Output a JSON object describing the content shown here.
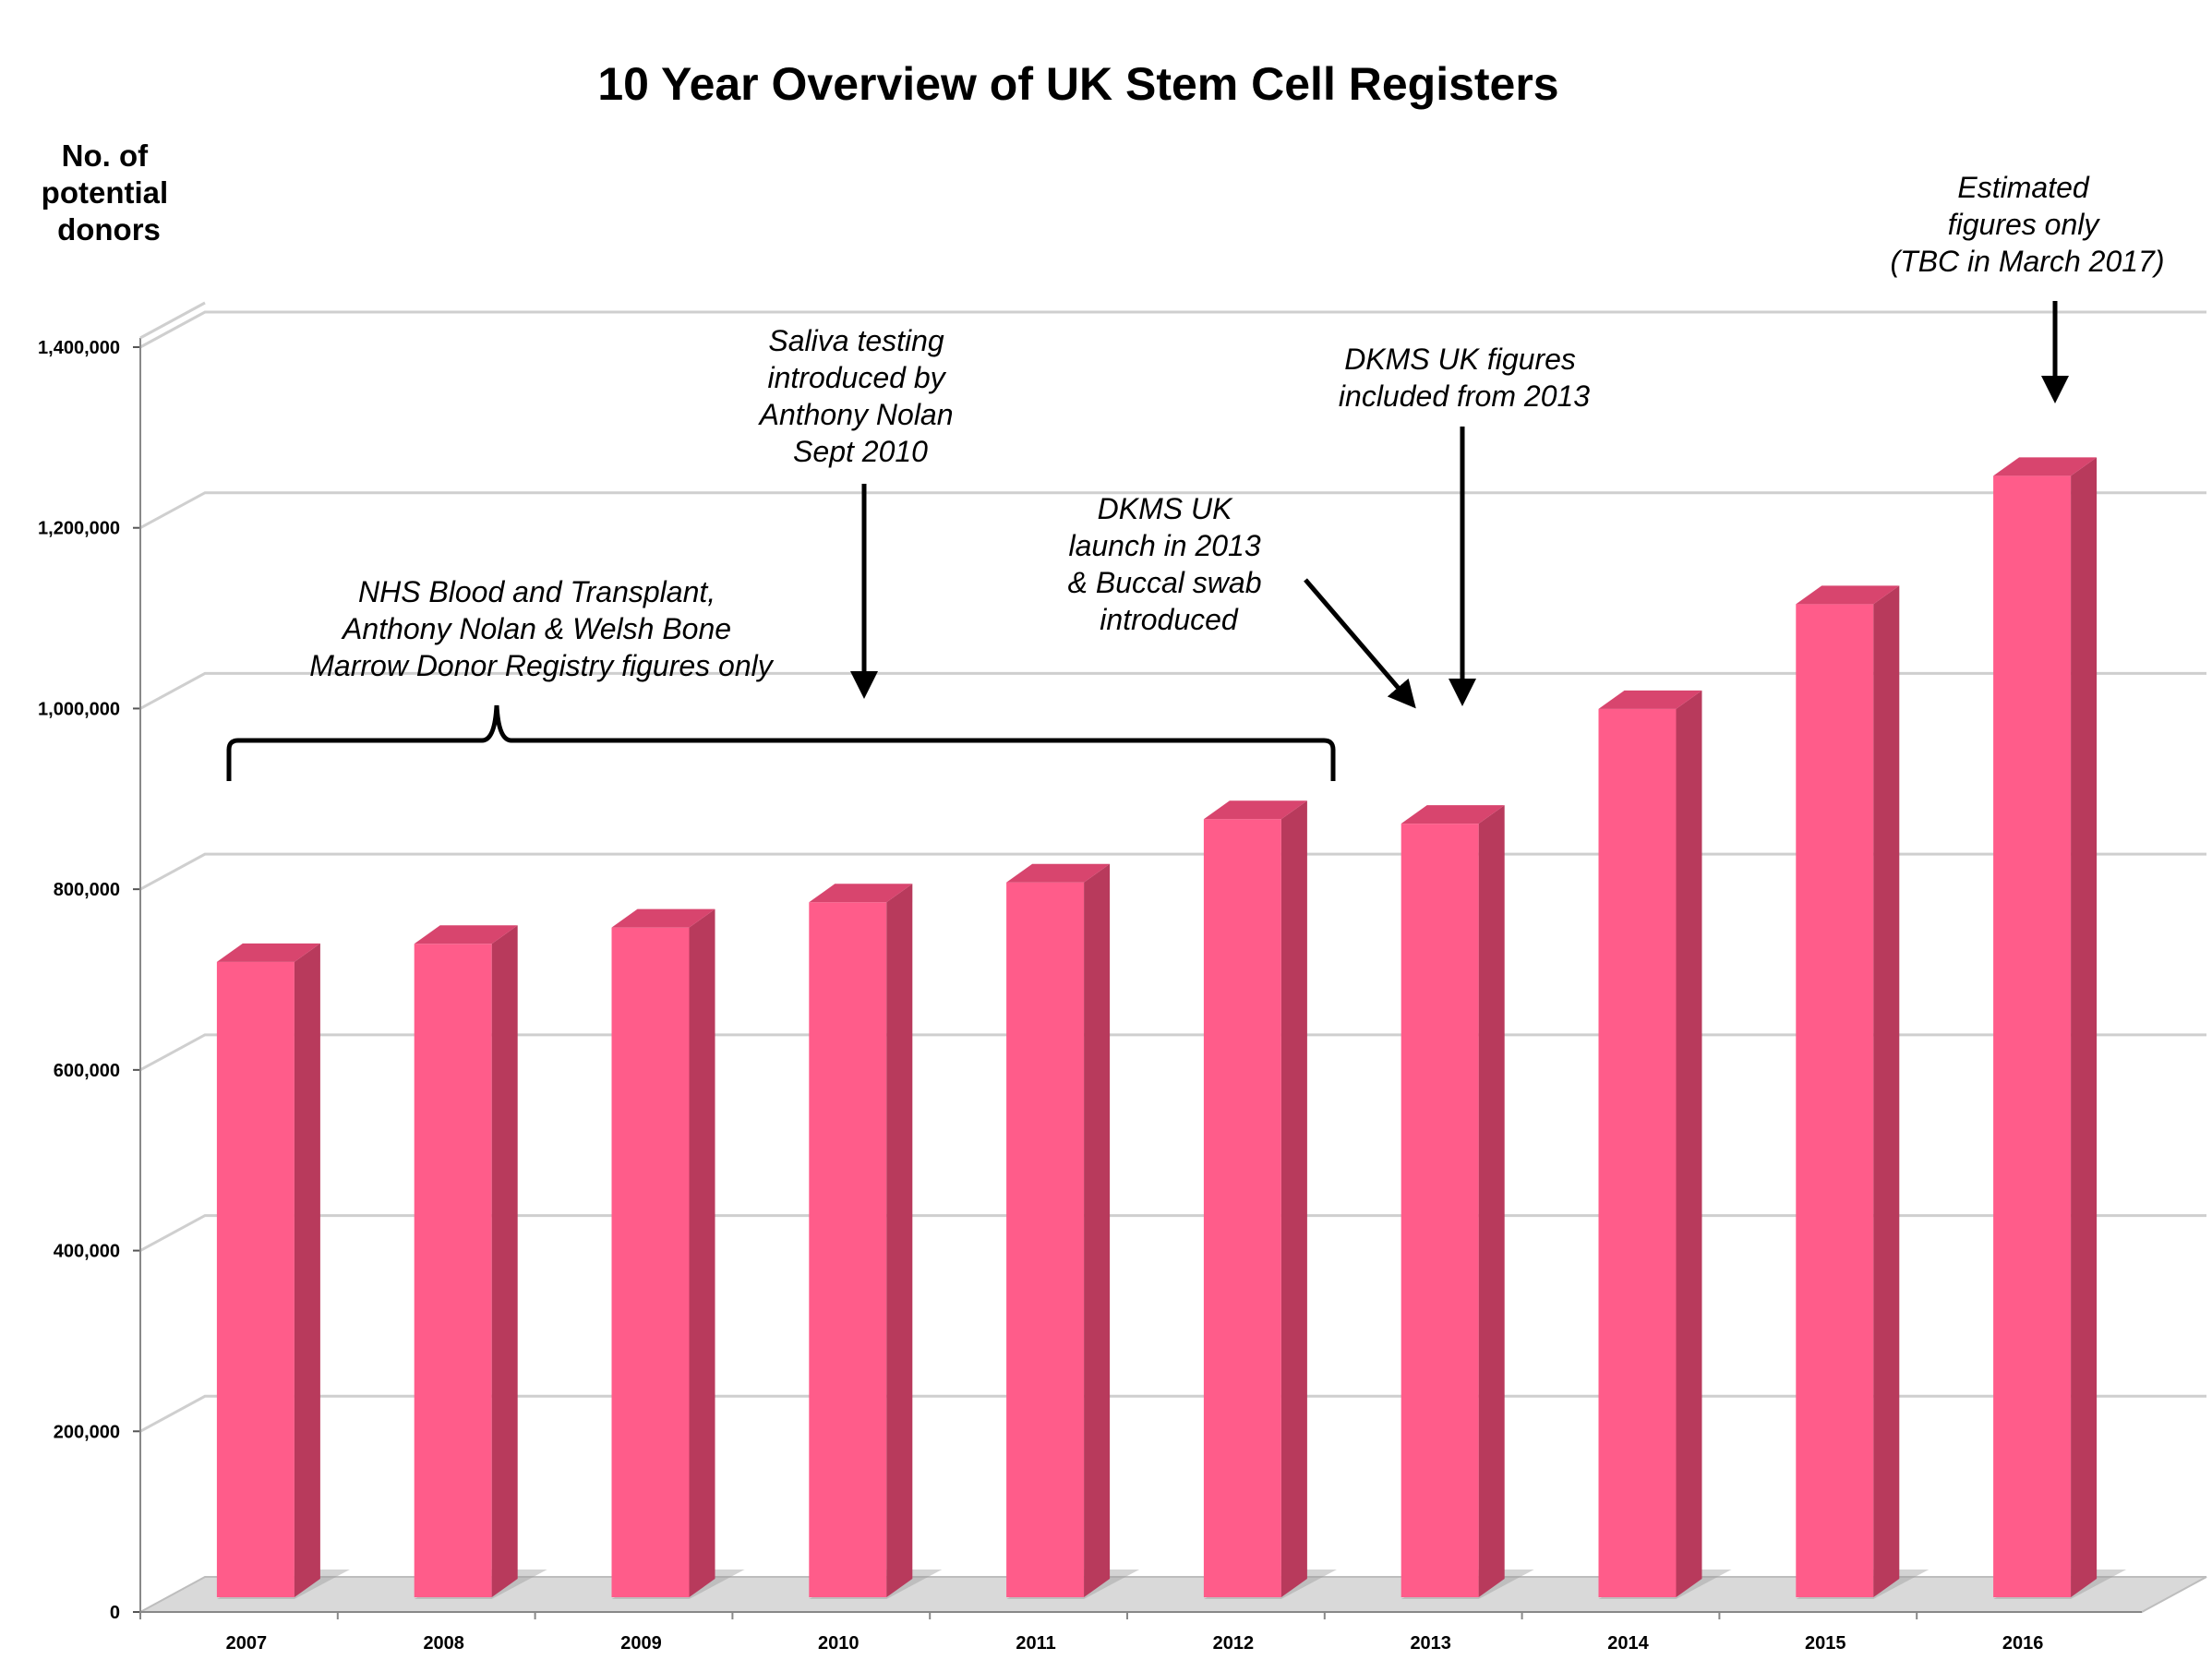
{
  "chart_data": {
    "type": "bar",
    "title": "10 Year Overview of UK Stem Cell Registers",
    "ylabel": "No. of potential donors",
    "ylabel_lines": [
      "No. of",
      "potential",
      "donors"
    ],
    "xlabel": "",
    "categories": [
      "2007",
      "2008",
      "2009",
      "2010",
      "2011",
      "2012",
      "2013",
      "2014",
      "2015",
      "2016"
    ],
    "values": [
      740000,
      760000,
      778000,
      806000,
      828000,
      898000,
      893000,
      1020000,
      1136000,
      1278000
    ],
    "ylim": [
      0,
      1400000
    ],
    "yticks": [
      0,
      200000,
      400000,
      600000,
      800000,
      1000000,
      1200000,
      1400000
    ],
    "ytick_labels": [
      "0",
      "200,000",
      "400,000",
      "600,000",
      "800,000",
      "1,000,000",
      "1,200,000",
      "1,400,000"
    ],
    "grid": true,
    "three_d": true,
    "bar_color": "#ff5c8a",
    "bar_side_color": "#b83a5c",
    "bar_top_color": "#d8456e",
    "annotations": [
      {
        "id": "nhs",
        "lines": [
          "NHS Blood and Transplant,",
          "Anthony Nolan & Welsh Bone",
          "Marrow Donor Registry figures only"
        ],
        "spans": [
          "2007",
          "2012"
        ]
      },
      {
        "id": "saliva",
        "lines": [
          "Saliva testing",
          "introduced by",
          "Anthony Nolan",
          "Sept 2010"
        ],
        "points_to": "2010"
      },
      {
        "id": "dkms-launch",
        "lines": [
          "DKMS UK",
          "launch in 2013",
          "& Buccal swab",
          "introduced"
        ],
        "points_to": "2013"
      },
      {
        "id": "dkms-figures",
        "lines": [
          "DKMS UK figures",
          "included from 2013"
        ],
        "points_to": "2013"
      },
      {
        "id": "estimated",
        "lines": [
          "Estimated",
          "figures only",
          "(TBC in March 2017)"
        ],
        "points_to": "2016"
      }
    ]
  }
}
